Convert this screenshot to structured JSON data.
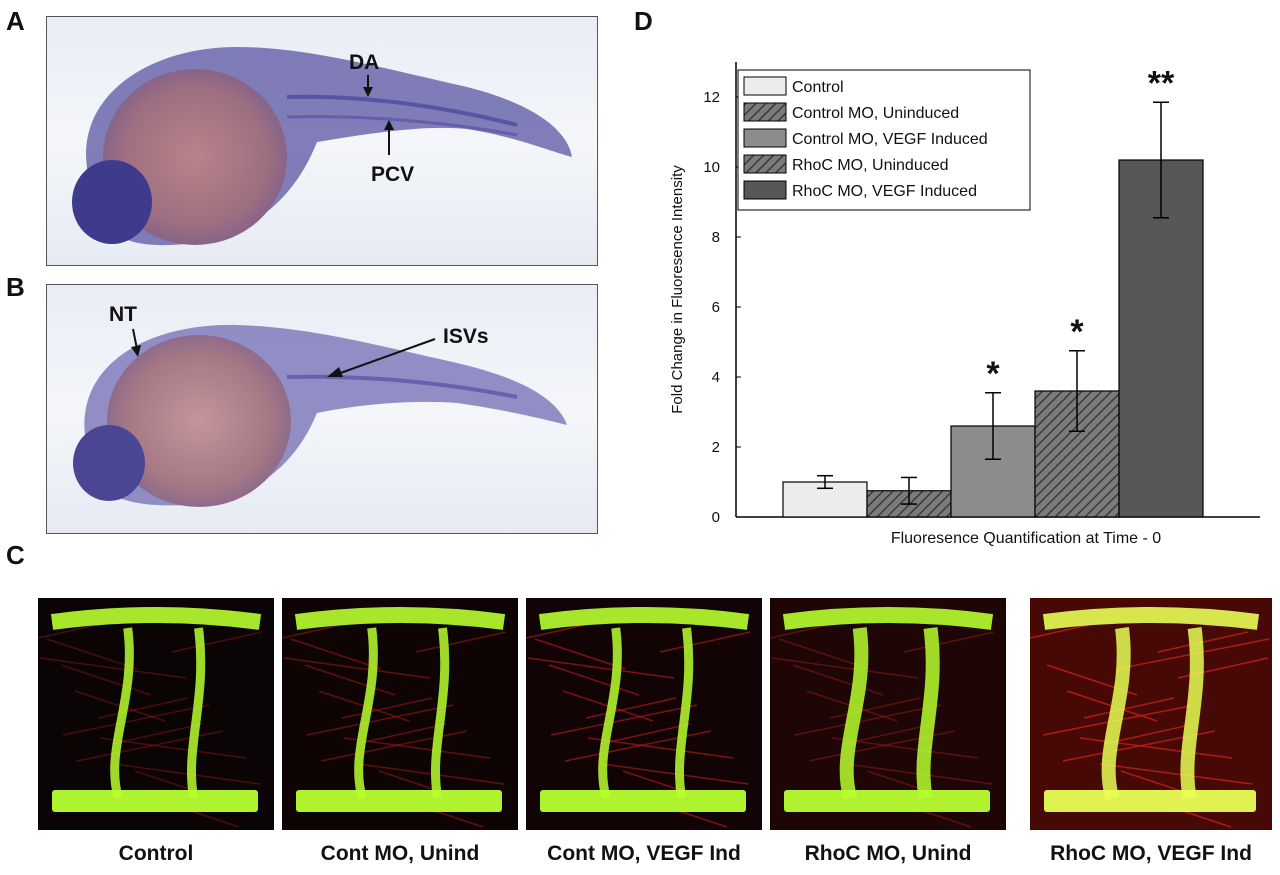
{
  "panels": {
    "a": {
      "letter": "A",
      "labels": {
        "da": "DA",
        "pcv": "PCV"
      }
    },
    "b": {
      "letter": "B",
      "labels": {
        "nt": "NT",
        "isvs": "ISVs"
      }
    },
    "c": {
      "letter": "C",
      "captions": [
        "Control",
        "Cont MO, Unind",
        "Cont MO, VEGF Ind",
        "RhoC MO, Unind",
        "RhoC MO, VEGF Ind"
      ]
    },
    "d": {
      "letter": "D"
    }
  },
  "chart_data": {
    "type": "bar",
    "xlabel": "Fluoresence Quantification at Time - 0",
    "ylabel": "Fold Change in Fluoresence Intensity",
    "ylim": [
      0,
      13
    ],
    "yticks": [
      0,
      2,
      4,
      6,
      8,
      10,
      12
    ],
    "legend_position": "top-left",
    "series": [
      {
        "name": "Control",
        "value": 1.0,
        "error": 0.18,
        "fill": "#ececec",
        "hatch": false,
        "annotation": ""
      },
      {
        "name": "Control MO, Uninduced",
        "value": 0.75,
        "error": 0.38,
        "fill": "#8a8a8a",
        "hatch": true,
        "annotation": ""
      },
      {
        "name": "Control MO, VEGF Induced",
        "value": 2.6,
        "error": 0.95,
        "fill": "#8c8c8c",
        "hatch": false,
        "annotation": "*"
      },
      {
        "name": "RhoC MO, Uninduced",
        "value": 3.6,
        "error": 1.15,
        "fill": "#6a6a6a",
        "hatch": true,
        "annotation": "*"
      },
      {
        "name": "RhoC MO, VEGF Induced",
        "value": 10.2,
        "error": 1.65,
        "fill": "#575757",
        "hatch": false,
        "annotation": "**"
      }
    ]
  }
}
